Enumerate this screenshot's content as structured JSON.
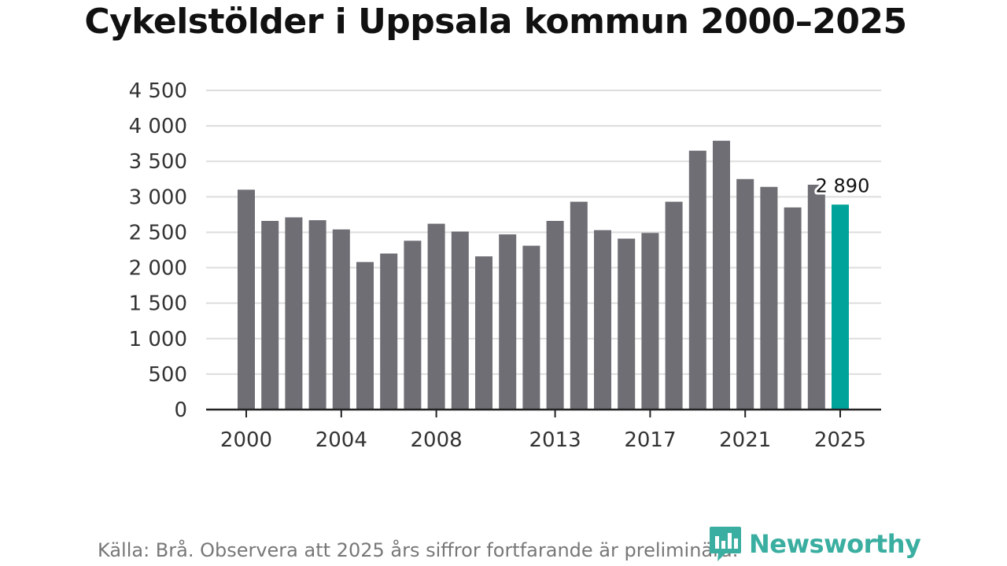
{
  "title": "Cykelstölder i Uppsala kommun 2000–2025",
  "source": "Källa: Brå. Observera att 2025 års siffror fortfarande är preliminära.",
  "brand": {
    "name": "Newsworthy",
    "color": "#3aaea0"
  },
  "chart_data": {
    "type": "bar",
    "title": "Cykelstölder i Uppsala kommun 2000–2025",
    "xlabel": "",
    "ylabel": "",
    "ylim": [
      0,
      4500
    ],
    "yticks": [
      0,
      500,
      1000,
      1500,
      2000,
      2500,
      3000,
      3500,
      4000,
      4500
    ],
    "ytick_labels": [
      "0",
      "500",
      "1 000",
      "1 500",
      "2 000",
      "2 500",
      "3 000",
      "3 500",
      "4 000",
      "4 500"
    ],
    "xticks": [
      "2000",
      "2004",
      "2008",
      "2013",
      "2017",
      "2021",
      "2025"
    ],
    "grid": true,
    "categories": [
      "2000",
      "2001",
      "2002",
      "2003",
      "2004",
      "2005",
      "2006",
      "2007",
      "2008",
      "2009",
      "2010",
      "2011",
      "2012",
      "2013",
      "2014",
      "2015",
      "2016",
      "2017",
      "2018",
      "2019",
      "2020",
      "2021",
      "2022",
      "2023",
      "2024",
      "2025"
    ],
    "values": [
      3100,
      2660,
      2710,
      2670,
      2540,
      2080,
      2200,
      2380,
      2620,
      2510,
      2160,
      2470,
      2310,
      2660,
      2930,
      2530,
      2410,
      2490,
      2930,
      3650,
      3790,
      3250,
      3140,
      2850,
      3170,
      2890
    ],
    "highlight_index": 25,
    "bar_color": "#6e6e74",
    "highlight_color": "#00a39a",
    "annotations": [
      {
        "category": "2025",
        "label": "2 890"
      }
    ]
  }
}
